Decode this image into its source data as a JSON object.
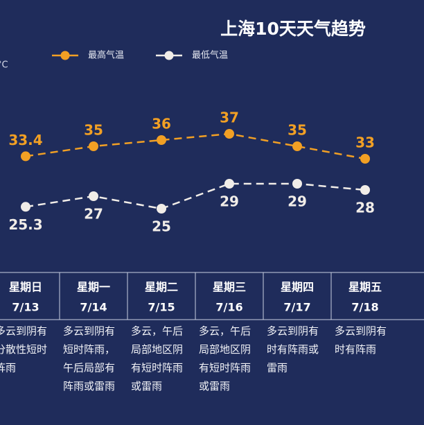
{
  "chart_data": {
    "type": "line",
    "title": "上海10天天气趋势",
    "unit": "°C",
    "categories": [
      "7/13",
      "7/14",
      "7/15",
      "7/16",
      "7/17",
      "7/18"
    ],
    "weekdays": [
      "星期日",
      "星期一",
      "星期二",
      "星期三",
      "星期四",
      "星期五"
    ],
    "series": [
      {
        "name": "最高气温",
        "color": "#f2a024",
        "values": [
          33.4,
          35,
          36,
          37,
          35,
          33
        ]
      },
      {
        "name": "最低气温",
        "color": "#f1ede8",
        "values": [
          25.3,
          27,
          25,
          29,
          29,
          28
        ]
      }
    ],
    "ylim": [
      20,
      45
    ],
    "descriptions": [
      [
        "多云到阴有",
        "分散性短时",
        "阵雨"
      ],
      [
        "多云到阴有",
        "短时阵雨，",
        "午后局部有",
        "阵雨或雷雨"
      ],
      [
        "多云，午后",
        "局部地区阴",
        "有短时阵雨",
        "或雷雨"
      ],
      [
        "多云，午后",
        "局部地区阴",
        "有短时阵雨",
        "或雷雨"
      ],
      [
        "多云到阴有",
        "时有阵雨或",
        "雷雨"
      ],
      [
        "多云到阴有",
        "时有阵雨"
      ]
    ]
  }
}
